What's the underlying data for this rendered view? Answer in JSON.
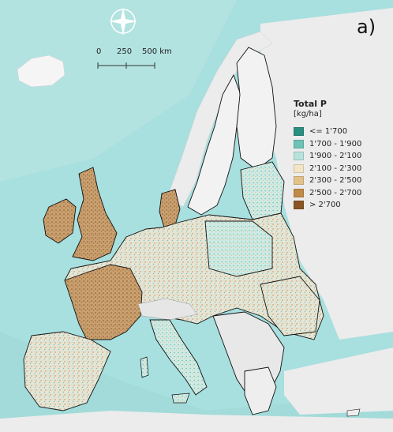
{
  "panel_label": "a)",
  "scale_bar": {
    "labels": [
      "0",
      "250",
      "500 km"
    ]
  },
  "compass": {
    "icon": "compass-rose-icon"
  },
  "legend": {
    "title": "Total P",
    "unit": "[kg/ha]",
    "items": [
      {
        "label": "<= 1'700",
        "color": "#2a8f80"
      },
      {
        "label": "1'700 - 1'900",
        "color": "#6fc2b5"
      },
      {
        "label": "1'900 - 2'100",
        "color": "#b7e3dc"
      },
      {
        "label": "2'100 - 2'300",
        "color": "#f3e6c4"
      },
      {
        "label": "2'300 - 2'500",
        "color": "#e2c28a"
      },
      {
        "label": "2'500 - 2'700",
        "color": "#c08a48"
      },
      {
        "label": "> 2'700",
        "color": "#8a5525"
      }
    ]
  },
  "colors": {
    "sea": "#a8dfdf",
    "land_no_data": "#ececec"
  }
}
